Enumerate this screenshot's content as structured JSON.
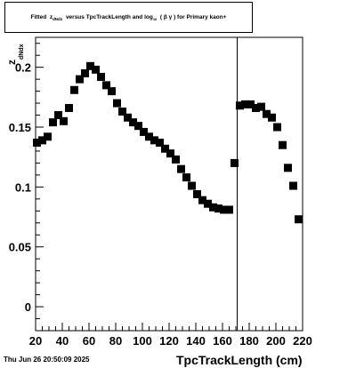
{
  "chart_data": {
    "type": "scatter",
    "title": {
      "prefix": "Fitted",
      "z": "z",
      "z_sub": "dNdx",
      "middle": "versus TpcTrackLength and log",
      "log_sub": "10",
      "paren": "( β γ ) for Primary kaon+"
    },
    "xlabel": "TpcTrackLength (cm)",
    "ylabel": "z",
    "ylabel_sub": "dNdx",
    "xlim": [
      20,
      220
    ],
    "ylim": [
      -0.02,
      0.225
    ],
    "x_ticks": [
      "20",
      "40",
      "60",
      "80",
      "100",
      "120",
      "140",
      "160",
      "180",
      "200",
      "220"
    ],
    "y_ticks": [
      "0",
      "0.05",
      "0.1",
      "0.15",
      "0.2"
    ],
    "vline_x": 171,
    "x": [
      21,
      25,
      29,
      33,
      37,
      41,
      45,
      49,
      53,
      57,
      61,
      65,
      69,
      73,
      77,
      81,
      85,
      89,
      93,
      97,
      101,
      105,
      109,
      113,
      117,
      121,
      125,
      129,
      133,
      137,
      141,
      145,
      149,
      153,
      157,
      161,
      165,
      169,
      173,
      177,
      181,
      185,
      189,
      193,
      197,
      201,
      205,
      209,
      213,
      217
    ],
    "y": [
      0.137,
      0.139,
      0.142,
      0.154,
      0.16,
      0.155,
      0.166,
      0.181,
      0.19,
      0.195,
      0.201,
      0.198,
      0.192,
      0.185,
      0.18,
      0.17,
      0.163,
      0.158,
      0.154,
      0.151,
      0.146,
      0.142,
      0.139,
      0.137,
      0.132,
      0.128,
      0.123,
      0.115,
      0.108,
      0.101,
      0.094,
      0.089,
      0.086,
      0.083,
      0.082,
      0.081,
      0.081,
      0.12,
      0.168,
      0.169,
      0.169,
      0.166,
      0.167,
      0.161,
      0.158,
      0.15,
      0.135,
      0.116,
      0.101,
      0.073
    ]
  },
  "footer": {
    "timestamp": "Thu Jun 26 20:50:09 2025"
  }
}
